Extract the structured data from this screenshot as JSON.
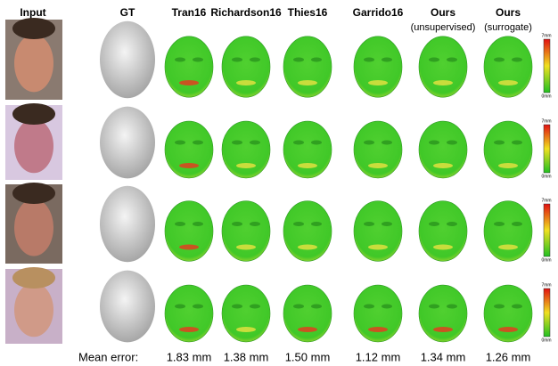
{
  "columns": [
    {
      "label": "Input"
    },
    {
      "label": "GT"
    },
    {
      "label": "Tran16"
    },
    {
      "label": "Richardson16"
    },
    {
      "label": "Thies16"
    },
    {
      "label": "Garrido16"
    },
    {
      "label": "Ours",
      "sublabel": "(unsupervised)"
    },
    {
      "label": "Ours",
      "sublabel": "(surrogate)"
    }
  ],
  "colorbar": {
    "max": "7mm",
    "min": "0mm"
  },
  "mean_error": {
    "label": "Mean error:",
    "values": [
      "1.83 mm",
      "1.38 mm",
      "1.50 mm",
      "1.12 mm",
      "1.34 mm",
      "1.26 mm"
    ]
  }
}
